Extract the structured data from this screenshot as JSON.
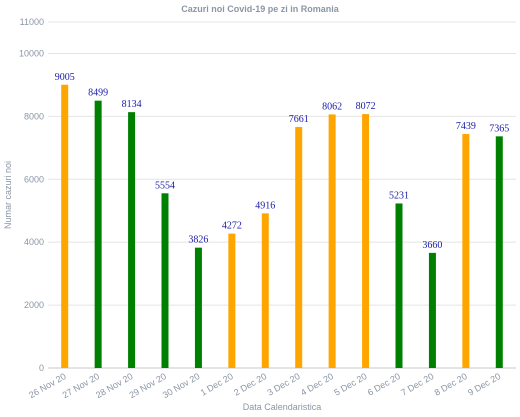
{
  "chart_data": {
    "type": "bar",
    "title": "Cazuri noi Covid-19 pe zi in Romania",
    "xlabel": "Data Calendaristica",
    "ylabel": "Numar cazuri noi",
    "ylim": [
      0,
      11000
    ],
    "yticks": [
      "0",
      "2000",
      "4000",
      "6000",
      "8000",
      "10000",
      "11000"
    ],
    "ytick_values": [
      0,
      2000,
      4000,
      6000,
      8000,
      10000,
      11000
    ],
    "grid": "horizontal",
    "categories": [
      "26 Nov 20",
      "27 Nov 20",
      "28 Nov 20",
      "29 Nov 20",
      "30 Nov 20",
      "1 Dec 20",
      "2 Dec 20",
      "3 Dec 20",
      "4 Dec 20",
      "5 Dec 20",
      "6 Dec 20",
      "7 Dec 20",
      "8 Dec 20",
      "9 Dec 20"
    ],
    "values": [
      9005,
      8499,
      8134,
      5554,
      3826,
      4272,
      4916,
      7661,
      8062,
      8072,
      5231,
      3660,
      7439,
      7365
    ],
    "data_labels": [
      "9005",
      "8499",
      "8134",
      "5554",
      "3826",
      "4272",
      "4916",
      "7661",
      "8062",
      "8072",
      "5231",
      "3660",
      "7439",
      "7365"
    ],
    "bar_colors": [
      "#ffa500",
      "#008000",
      "#008000",
      "#008000",
      "#008000",
      "#ffa500",
      "#ffa500",
      "#ffa500",
      "#ffa500",
      "#ffa500",
      "#008000",
      "#008000",
      "#ffa500",
      "#008000"
    ],
    "colors": {
      "orange": "#ffa500",
      "green": "#008000",
      "label_color": "#1a1aa8",
      "axis_text": "#8a96a6",
      "grid": "#e4e4e4"
    }
  }
}
